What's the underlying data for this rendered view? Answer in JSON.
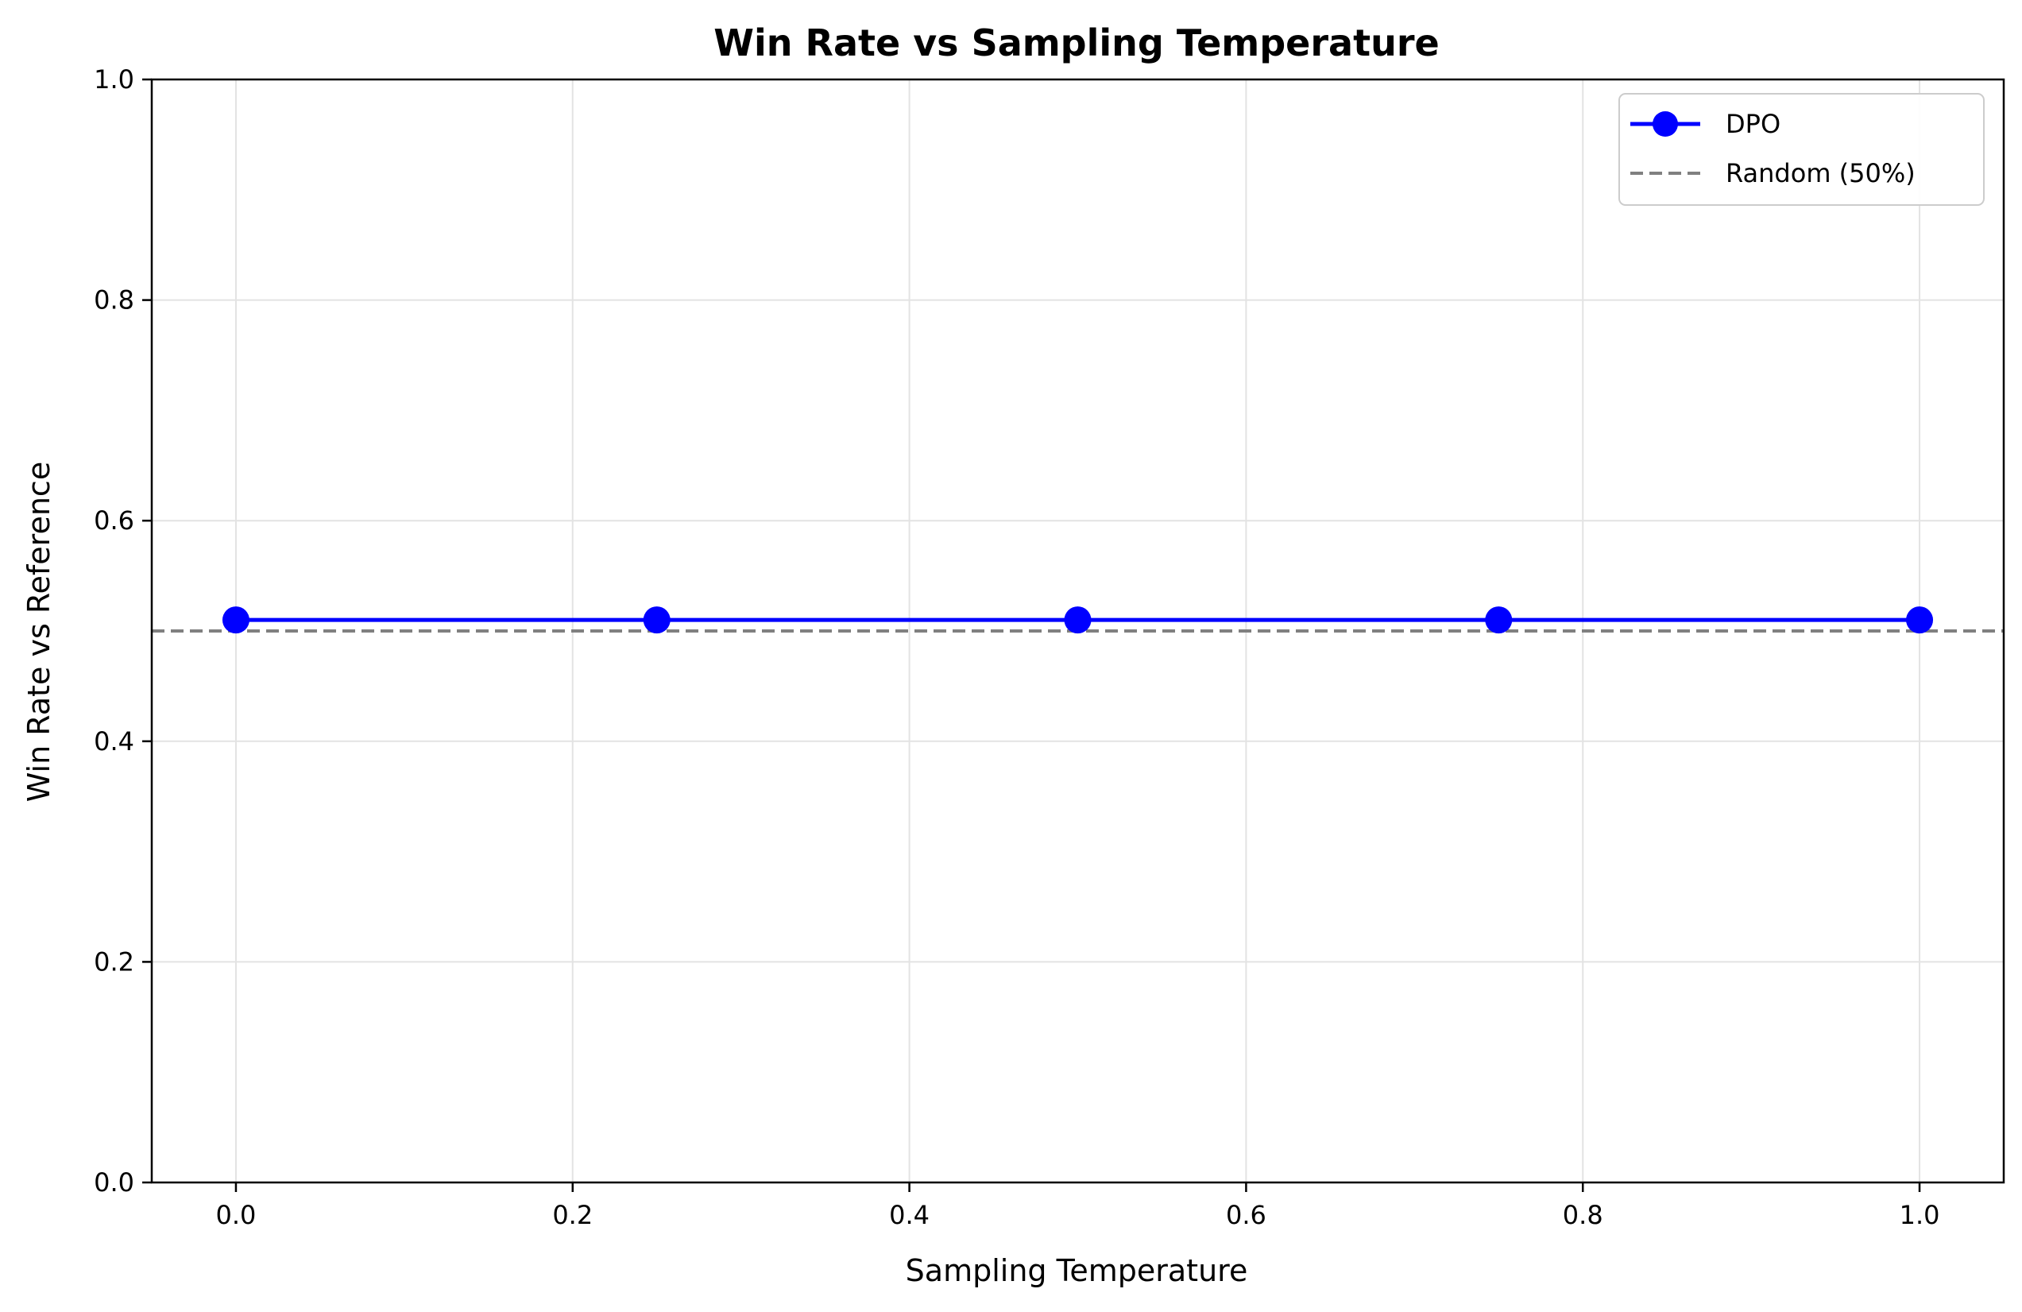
{
  "chart_data": {
    "type": "line",
    "title": "Win Rate vs Sampling Temperature",
    "xlabel": "Sampling Temperature",
    "ylabel": "Win Rate vs Reference",
    "xlim": [
      -0.05,
      1.05
    ],
    "ylim": [
      0.0,
      1.0
    ],
    "xticks": [
      0.0,
      0.2,
      0.4,
      0.6,
      0.8,
      1.0
    ],
    "xtick_labels": [
      "0.0",
      "0.2",
      "0.4",
      "0.6",
      "0.8",
      "1.0"
    ],
    "yticks": [
      0.0,
      0.2,
      0.4,
      0.6,
      0.8,
      1.0
    ],
    "ytick_labels": [
      "0.0",
      "0.2",
      "0.4",
      "0.6",
      "0.8",
      "1.0"
    ],
    "grid": true,
    "legend_position": "top-right",
    "series": [
      {
        "name": "DPO",
        "x": [
          0.0,
          0.25,
          0.5,
          0.75,
          1.0
        ],
        "y": [
          0.51,
          0.51,
          0.51,
          0.51,
          0.51
        ],
        "color": "#0000ff",
        "marker": "circle",
        "line_style": "solid"
      }
    ],
    "reference_lines": [
      {
        "name": "Random (50%)",
        "y": 0.5,
        "color": "#808080",
        "line_style": "dashed"
      }
    ]
  }
}
